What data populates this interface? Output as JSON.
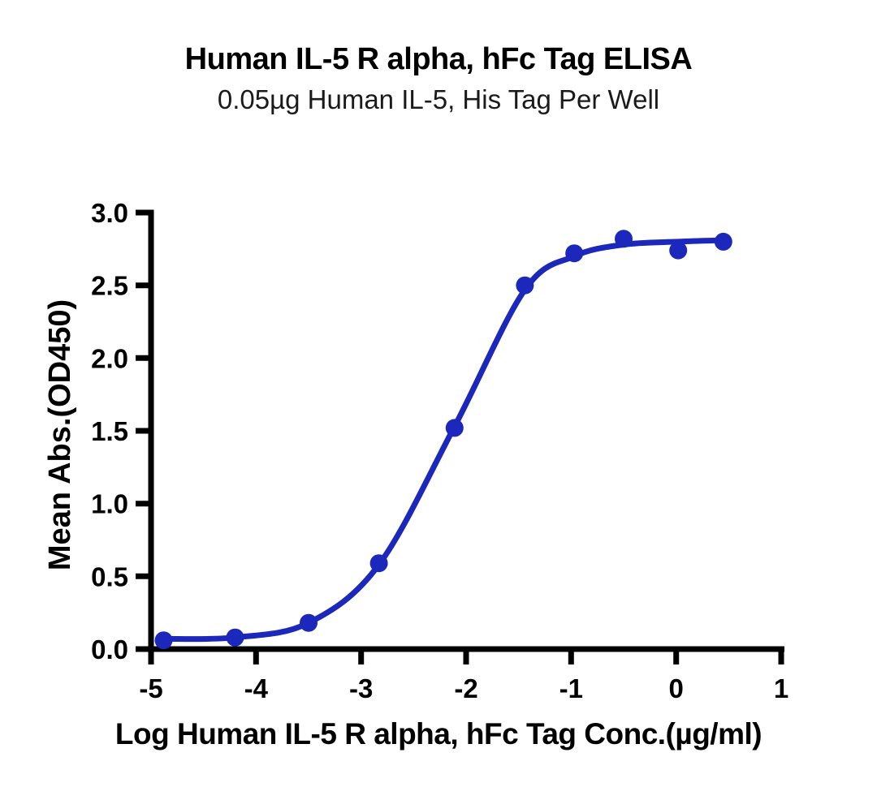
{
  "title": "Human IL-5 R alpha, hFc Tag ELISA",
  "subtitle": "0.05µg Human IL-5, His Tag Per Well",
  "chart_data": {
    "type": "scatter",
    "title": "Human IL-5 R alpha, hFc Tag ELISA",
    "subtitle": "0.05µg Human IL-5, His Tag Per Well",
    "xlabel": "Log Human IL-5 R alpha, hFc Tag Conc.(µg/ml)",
    "ylabel": "Mean Abs.(OD450)",
    "xlim": [
      -5,
      1
    ],
    "ylim": [
      0,
      3
    ],
    "grid": false,
    "legend": "none",
    "xticks": [
      -5,
      -4,
      -3,
      -2,
      -1,
      0,
      1
    ],
    "xtick_labels": [
      "-5",
      "-4",
      "-3",
      "-2",
      "-1",
      "0",
      "1"
    ],
    "yticks": [
      0,
      0.5,
      1,
      1.5,
      2,
      2.5,
      3
    ],
    "ytick_labels": [
      "0.0",
      "0.5",
      "1.0",
      "1.5",
      "2.0",
      "2.5",
      "3.0"
    ],
    "series_color": "#1c27bb",
    "axis_color": "#000000",
    "points": [
      [
        -4.88,
        0.06
      ],
      [
        -4.2,
        0.08
      ],
      [
        -3.5,
        0.18
      ],
      [
        -2.83,
        0.59
      ],
      [
        -2.11,
        1.52
      ],
      [
        -1.44,
        2.5
      ],
      [
        -0.97,
        2.72
      ],
      [
        -0.5,
        2.82
      ],
      [
        0.02,
        2.74
      ],
      [
        0.45,
        2.8
      ]
    ],
    "fit_curve": [
      [
        -4.88,
        0.07
      ],
      [
        -4.2,
        0.08
      ],
      [
        -3.5,
        0.18
      ],
      [
        -2.83,
        0.58
      ],
      [
        -2.11,
        1.53
      ],
      [
        -1.44,
        2.47
      ],
      [
        -0.97,
        2.7
      ],
      [
        -0.5,
        2.78
      ],
      [
        0.02,
        2.8
      ],
      [
        0.45,
        2.81
      ]
    ]
  }
}
